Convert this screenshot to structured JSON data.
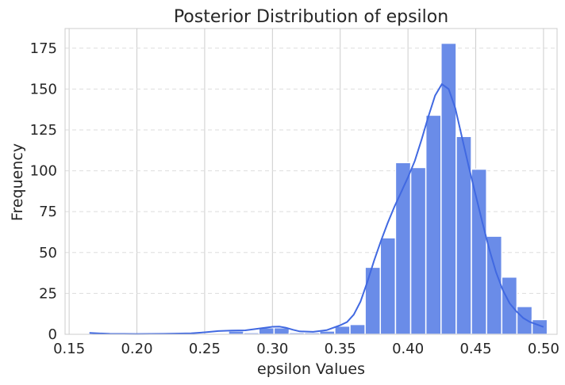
{
  "chart_data": {
    "type": "histogram",
    "title": "Posterior Distribution of epsilon",
    "xlabel": "epsilon Values",
    "ylabel": "Frequency",
    "xlim": [
      0.147,
      0.51
    ],
    "ylim": [
      0,
      187
    ],
    "xticks": [
      "0.15",
      "0.20",
      "0.25",
      "0.30",
      "0.35",
      "0.40",
      "0.45",
      "0.50"
    ],
    "xtick_values": [
      0.15,
      0.2,
      0.25,
      0.3,
      0.35,
      0.4,
      0.45,
      0.5
    ],
    "yticks": [
      "0",
      "25",
      "50",
      "75",
      "100",
      "125",
      "150",
      "175"
    ],
    "ytick_values": [
      0,
      25,
      50,
      75,
      100,
      125,
      150,
      175
    ],
    "grid": true,
    "bin_width": 0.0112,
    "bins": [
      {
        "start": 0.2676,
        "count": 2
      },
      {
        "start": 0.2788,
        "count": 1
      },
      {
        "start": 0.29,
        "count": 4
      },
      {
        "start": 0.3012,
        "count": 4
      },
      {
        "start": 0.3124,
        "count": 1
      },
      {
        "start": 0.3236,
        "count": 1
      },
      {
        "start": 0.3348,
        "count": 2
      },
      {
        "start": 0.346,
        "count": 5
      },
      {
        "start": 0.3572,
        "count": 6
      },
      {
        "start": 0.3684,
        "count": 41
      },
      {
        "start": 0.3796,
        "count": 59
      },
      {
        "start": 0.3908,
        "count": 105
      },
      {
        "start": 0.402,
        "count": 102
      },
      {
        "start": 0.4132,
        "count": 134
      },
      {
        "start": 0.4244,
        "count": 178
      },
      {
        "start": 0.4356,
        "count": 121
      },
      {
        "start": 0.4468,
        "count": 101
      },
      {
        "start": 0.458,
        "count": 60
      },
      {
        "start": 0.4692,
        "count": 35
      },
      {
        "start": 0.4804,
        "count": 17
      },
      {
        "start": 0.4916,
        "count": 9
      }
    ],
    "kde": {
      "x": [
        0.165,
        0.18,
        0.2,
        0.22,
        0.24,
        0.25,
        0.26,
        0.27,
        0.28,
        0.29,
        0.3,
        0.305,
        0.31,
        0.315,
        0.32,
        0.33,
        0.34,
        0.35,
        0.355,
        0.36,
        0.365,
        0.37,
        0.375,
        0.38,
        0.385,
        0.39,
        0.395,
        0.4,
        0.405,
        0.41,
        0.415,
        0.42,
        0.425,
        0.43,
        0.435,
        0.44,
        0.445,
        0.45,
        0.455,
        0.46,
        0.465,
        0.47,
        0.475,
        0.48,
        0.485,
        0.49,
        0.495,
        0.5
      ],
      "y": [
        0.8,
        0.3,
        0.2,
        0.3,
        0.6,
        1.2,
        2.0,
        2.3,
        2.4,
        3.5,
        4.6,
        4.7,
        4.0,
        2.8,
        1.8,
        1.5,
        2.5,
        5.5,
        7.5,
        12.0,
        20.0,
        32.0,
        45.0,
        57.0,
        68.0,
        78.0,
        87.0,
        96.0,
        106.0,
        119.0,
        133.0,
        146.0,
        153.0,
        150.0,
        138.0,
        120.0,
        102.0,
        85.0,
        68.0,
        52.0,
        38.0,
        27.0,
        19.0,
        14.0,
        10.0,
        7.5,
        6.0,
        4.5
      ]
    },
    "colors": {
      "bar_fill": "#6a8ce8",
      "bar_edge": "#ffffff",
      "kde_line": "#4169e1",
      "grid": "#cccccc",
      "frame": "#cccccc"
    }
  }
}
